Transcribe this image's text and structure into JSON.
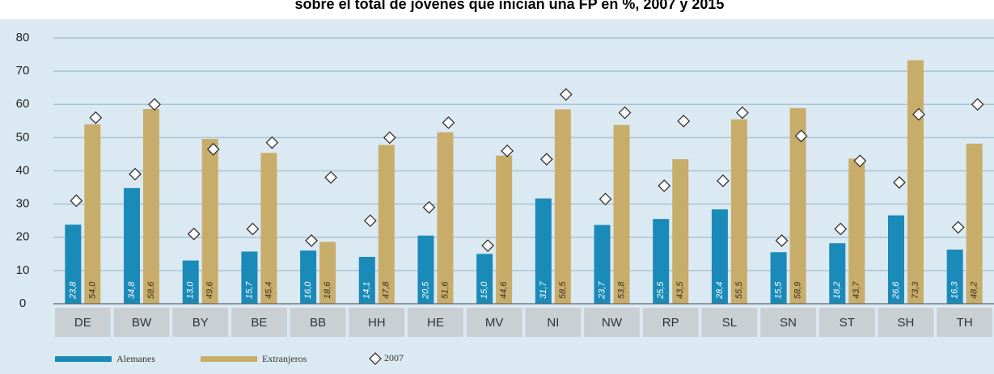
{
  "chart_data": {
    "type": "bar",
    "title": "sobre el total de jóvenes que inician una FP en %, 2007 y 2015",
    "categories": [
      "DE",
      "BW",
      "BY",
      "BE",
      "BB",
      "HH",
      "HE",
      "MV",
      "NI",
      "NW",
      "RP",
      "SL",
      "SN",
      "ST",
      "SH",
      "TH"
    ],
    "series": [
      {
        "name": "Alemanes",
        "color": "#1a8ab9",
        "values": [
          23.8,
          34.8,
          13.0,
          15.7,
          16.0,
          14.1,
          20.5,
          15.0,
          31.7,
          23.7,
          25.5,
          28.4,
          15.5,
          18.2,
          26.6,
          16.3
        ],
        "value_labels": [
          "23,8",
          "34,8",
          "13,0",
          "15,7",
          "16,0",
          "14,1",
          "20,5",
          "15,0",
          "31,7",
          "23,7",
          "25,5",
          "28,4",
          "15,5",
          "18,2",
          "26,6",
          "16,3"
        ],
        "values_2007": [
          31,
          39,
          21,
          22.5,
          19,
          25,
          29,
          17.5,
          43.5,
          31.5,
          35.5,
          37,
          19,
          22.5,
          36.5,
          23
        ]
      },
      {
        "name": "Extranjeros",
        "color": "#c8ac6a",
        "values": [
          54.0,
          58.6,
          49.6,
          45.4,
          18.6,
          47.8,
          51.6,
          44.6,
          58.5,
          53.8,
          43.5,
          55.5,
          58.9,
          43.7,
          73.3,
          48.2
        ],
        "value_labels": [
          "54,0",
          "58,6",
          "49,6",
          "45,4",
          "18,6",
          "47,8",
          "51,6",
          "44,6",
          "58,5",
          "53,8",
          "43,5",
          "55,5",
          "58,9",
          "43,7",
          "73,3",
          "48,2"
        ],
        "values_2007": [
          56,
          60,
          46.5,
          48.5,
          38,
          50,
          54.5,
          46,
          63,
          57.5,
          55,
          57.5,
          50.5,
          43,
          57,
          60
        ]
      }
    ],
    "marker_name": "2007",
    "ylim": [
      0,
      80
    ],
    "yticks": [
      0,
      10,
      20,
      30,
      40,
      50,
      60,
      70,
      80
    ],
    "grid": true
  }
}
